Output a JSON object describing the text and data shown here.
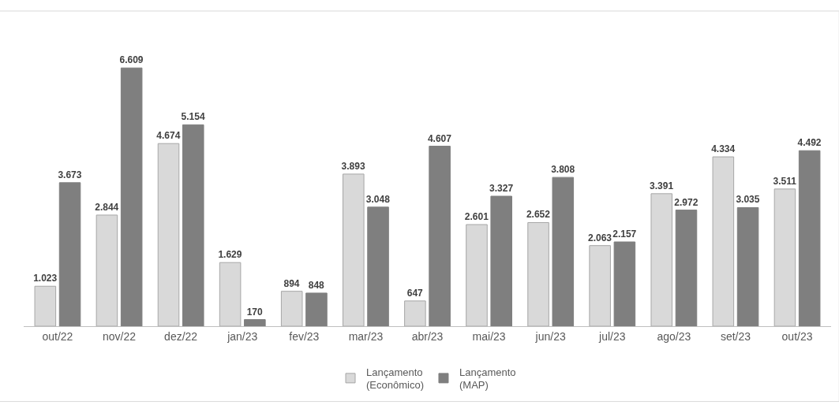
{
  "chart_data": {
    "type": "bar",
    "categories": [
      "out/22",
      "nov/22",
      "dez/22",
      "jan/23",
      "fev/23",
      "mar/23",
      "abr/23",
      "mai/23",
      "jun/23",
      "jul/23",
      "ago/23",
      "set/23",
      "out/23"
    ],
    "series": [
      {
        "name": "Lançamento (Econômico)",
        "color": "#d9d9d9",
        "values": [
          1023,
          2844,
          4674,
          1629,
          894,
          3893,
          647,
          2601,
          2652,
          2063,
          3391,
          4334,
          3511
        ],
        "value_labels": [
          "1.023",
          "2.844",
          "4.674",
          "1.629",
          "894",
          "3.893",
          "647",
          "2.601",
          "2.652",
          "2.063",
          "3.391",
          "4.334",
          "3.511"
        ]
      },
      {
        "name": "Lançamento (MAP)",
        "color": "#7f7f7f",
        "values": [
          3673,
          6609,
          5154,
          170,
          848,
          3048,
          4607,
          3327,
          3808,
          2157,
          2972,
          3035,
          4492
        ],
        "value_labels": [
          "3.673",
          "6.609",
          "5.154",
          "170",
          "848",
          "3.048",
          "4.607",
          "3.327",
          "3.808",
          "2.157",
          "2.972",
          "3.035",
          "4.492"
        ]
      }
    ],
    "tick_labels": "x",
    "legend": "bottom"
  }
}
